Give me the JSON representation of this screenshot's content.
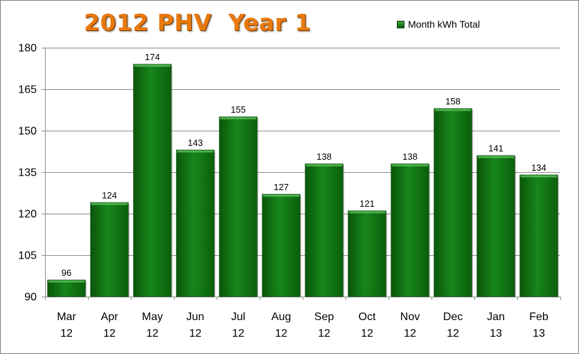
{
  "chart_data": {
    "type": "bar",
    "title": "2012 PHV  Year 1",
    "categories": [
      [
        "Mar",
        "12"
      ],
      [
        "Apr",
        "12"
      ],
      [
        "May",
        "12"
      ],
      [
        "Jun",
        "12"
      ],
      [
        "Jul",
        "12"
      ],
      [
        "Aug",
        "12"
      ],
      [
        "Sep",
        "12"
      ],
      [
        "Oct",
        "12"
      ],
      [
        "Nov",
        "12"
      ],
      [
        "Dec",
        "12"
      ],
      [
        "Jan",
        "13"
      ],
      [
        "Feb",
        "13"
      ]
    ],
    "series": [
      {
        "name": "Month kWh Total",
        "values": [
          96,
          124,
          174,
          143,
          155,
          127,
          138,
          121,
          138,
          158,
          141,
          134
        ]
      }
    ],
    "ylim": [
      90,
      180
    ],
    "yticks": [
      90,
      105,
      120,
      135,
      150,
      165,
      180
    ],
    "grid": true,
    "legend_position": "top-right",
    "bar_color": "#127a12"
  }
}
